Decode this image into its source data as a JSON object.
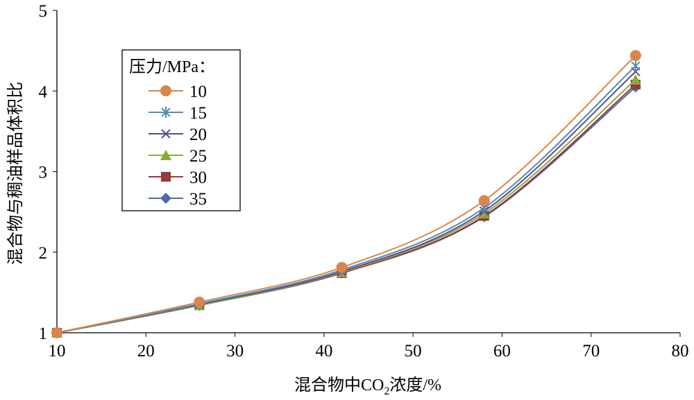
{
  "chart_data": {
    "type": "line",
    "title": "",
    "xlabel": "混合物中CO₂浓度/%",
    "xlabel_parts": [
      "混合物中CO",
      "2",
      "浓度/%"
    ],
    "ylabel": "混合物与稠油样品体积比",
    "xlim": [
      10,
      80
    ],
    "ylim": [
      1,
      5
    ],
    "xticks": [
      10,
      20,
      30,
      40,
      50,
      60,
      70,
      80
    ],
    "yticks": [
      1,
      2,
      3,
      4,
      5
    ],
    "grid": false,
    "legend_title": "压力/MPa：",
    "legend_position": "top-left",
    "x": [
      10,
      26,
      42,
      58,
      75
    ],
    "series": [
      {
        "name": "10",
        "marker": "circle",
        "color": "#d8874a",
        "values": [
          1,
          1.38,
          1.81,
          2.64,
          4.44
        ]
      },
      {
        "name": "15",
        "marker": "star",
        "color": "#4f8cb8",
        "values": [
          1,
          1.36,
          1.78,
          2.55,
          4.31
        ]
      },
      {
        "name": "20",
        "marker": "x",
        "color": "#5e4a8c",
        "values": [
          1,
          1.35,
          1.76,
          2.51,
          4.24
        ]
      },
      {
        "name": "25",
        "marker": "triangle",
        "color": "#8aab3c",
        "values": [
          1,
          1.34,
          1.75,
          2.48,
          4.14
        ]
      },
      {
        "name": "30",
        "marker": "square",
        "color": "#963a3e",
        "values": [
          1,
          1.34,
          1.74,
          2.45,
          4.08
        ]
      },
      {
        "name": "35",
        "marker": "diamond",
        "color": "#4a6cae",
        "values": [
          1,
          1.34,
          1.74,
          2.44,
          4.05
        ]
      }
    ]
  }
}
